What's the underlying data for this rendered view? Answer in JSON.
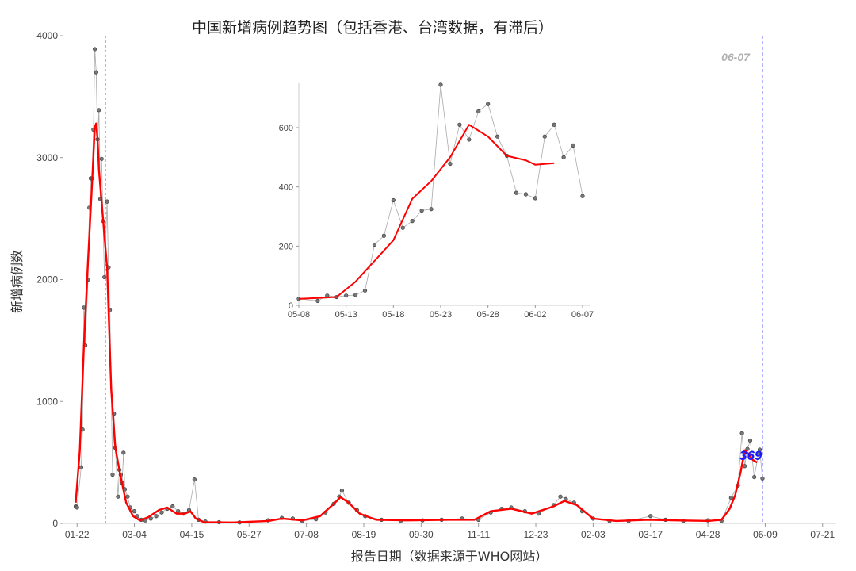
{
  "title": "中国新增病例趋势图（包括香港、台湾数据，有滞后）",
  "chart_data": [
    {
      "type": "line",
      "title": "中国新增病例趋势图（包括香港、台湾数据，有滞后）",
      "xlabel": "报告日期（数据来源于WHO网站）",
      "ylabel": "新增病例数",
      "ylim": [
        0,
        4000
      ],
      "xlim": [
        "2020-01-12",
        "2021-07-31"
      ],
      "y_ticks": [
        "0",
        "1000",
        "2000",
        "3000",
        "4000"
      ],
      "x_ticks": [
        "01-22",
        "03-04",
        "04-15",
        "05-27",
        "07-08",
        "08-19",
        "09-30",
        "11-11",
        "12-23",
        "02-03",
        "03-17",
        "04-28",
        "06-09",
        "07-21"
      ],
      "x_tick_dates": [
        "2020-01-22",
        "2020-03-04",
        "2020-04-15",
        "2020-05-27",
        "2020-07-08",
        "2020-08-19",
        "2020-09-30",
        "2020-11-11",
        "2020-12-23",
        "2021-02-03",
        "2021-03-17",
        "2021-04-28",
        "2021-06-09",
        "2021-07-21"
      ],
      "grid": false,
      "reference_lines": {
        "left_dashed": "2020-02-12",
        "right_dashed": "2021-06-07"
      },
      "annotation_date": "06-07",
      "annotation_last_value": "369",
      "series": [
        {
          "kind": "daily points",
          "color": "#555555",
          "points": [
            [
              "2020-01-21",
              140
            ],
            [
              "2020-01-22",
              131
            ],
            [
              "2020-01-25",
              460
            ],
            [
              "2020-01-26",
              770
            ],
            [
              "2020-01-27",
              1770
            ],
            [
              "2020-01-28",
              1460
            ],
            [
              "2020-01-30",
              2000
            ],
            [
              "2020-01-31",
              2590
            ],
            [
              "2020-02-01",
              2830
            ],
            [
              "2020-02-02",
              2830
            ],
            [
              "2020-02-03",
              3230
            ],
            [
              "2020-02-04",
              3890
            ],
            [
              "2020-02-05",
              3700
            ],
            [
              "2020-02-06",
              3150
            ],
            [
              "2020-02-07",
              3390
            ],
            [
              "2020-02-08",
              2660
            ],
            [
              "2020-02-09",
              2990
            ],
            [
              "2020-02-10",
              2480
            ],
            [
              "2020-02-11",
              2020
            ],
            [
              "2020-02-13",
              2640
            ],
            [
              "2020-02-14",
              2100
            ],
            [
              "2020-02-15",
              1750
            ],
            [
              "2020-02-17",
              400
            ],
            [
              "2020-02-18",
              900
            ],
            [
              "2020-02-19",
              620
            ],
            [
              "2020-02-21",
              220
            ],
            [
              "2020-02-22",
              440
            ],
            [
              "2020-02-23",
              400
            ],
            [
              "2020-02-24",
              330
            ],
            [
              "2020-02-25",
              580
            ],
            [
              "2020-02-26",
              280
            ],
            [
              "2020-02-28",
              220
            ],
            [
              "2020-03-01",
              130
            ],
            [
              "2020-03-04",
              100
            ],
            [
              "2020-03-06",
              60
            ],
            [
              "2020-03-09",
              30
            ],
            [
              "2020-03-12",
              25
            ],
            [
              "2020-03-16",
              40
            ],
            [
              "2020-03-20",
              60
            ],
            [
              "2020-03-24",
              90
            ],
            [
              "2020-03-28",
              120
            ],
            [
              "2020-04-01",
              140
            ],
            [
              "2020-04-05",
              100
            ],
            [
              "2020-04-09",
              80
            ],
            [
              "2020-04-13",
              110
            ],
            [
              "2020-04-17",
              360
            ],
            [
              "2020-04-20",
              30
            ],
            [
              "2020-04-25",
              15
            ],
            [
              "2020-05-05",
              10
            ],
            [
              "2020-05-20",
              8
            ],
            [
              "2020-06-10",
              25
            ],
            [
              "2020-06-20",
              45
            ],
            [
              "2020-06-28",
              40
            ],
            [
              "2020-07-05",
              20
            ],
            [
              "2020-07-15",
              35
            ],
            [
              "2020-07-22",
              90
            ],
            [
              "2020-07-28",
              160
            ],
            [
              "2020-08-01",
              220
            ],
            [
              "2020-08-03",
              270
            ],
            [
              "2020-08-08",
              170
            ],
            [
              "2020-08-14",
              110
            ],
            [
              "2020-08-20",
              60
            ],
            [
              "2020-09-01",
              30
            ],
            [
              "2020-09-15",
              20
            ],
            [
              "2020-10-01",
              25
            ],
            [
              "2020-10-15",
              30
            ],
            [
              "2020-10-30",
              40
            ],
            [
              "2020-11-11",
              30
            ],
            [
              "2020-11-20",
              90
            ],
            [
              "2020-11-28",
              120
            ],
            [
              "2020-12-05",
              130
            ],
            [
              "2020-12-15",
              100
            ],
            [
              "2020-12-25",
              80
            ],
            [
              "2021-01-05",
              150
            ],
            [
              "2021-01-10",
              220
            ],
            [
              "2021-01-14",
              200
            ],
            [
              "2021-01-20",
              170
            ],
            [
              "2021-01-26",
              100
            ],
            [
              "2021-02-03",
              40
            ],
            [
              "2021-02-15",
              20
            ],
            [
              "2021-03-01",
              20
            ],
            [
              "2021-03-17",
              60
            ],
            [
              "2021-03-28",
              30
            ],
            [
              "2021-04-10",
              20
            ],
            [
              "2021-04-28",
              25
            ],
            [
              "2021-05-08",
              20
            ],
            [
              "2021-05-15",
              210
            ],
            [
              "2021-05-20",
              310
            ],
            [
              "2021-05-23",
              740
            ],
            [
              "2021-05-25",
              470
            ],
            [
              "2021-05-27",
              610
            ],
            [
              "2021-05-29",
              680
            ],
            [
              "2021-06-01",
              380
            ],
            [
              "2021-06-04",
              570
            ],
            [
              "2021-06-05",
              605
            ],
            [
              "2021-06-07",
              369
            ]
          ]
        },
        {
          "kind": "smoothed trend",
          "color": "#ff0000",
          "points": [
            [
              "2020-01-21",
              170
            ],
            [
              "2020-01-24",
              600
            ],
            [
              "2020-01-27",
              1450
            ],
            [
              "2020-01-30",
              2150
            ],
            [
              "2020-02-02",
              2800
            ],
            [
              "2020-02-04",
              3250
            ],
            [
              "2020-02-05",
              3280
            ],
            [
              "2020-02-06",
              3150
            ],
            [
              "2020-02-07",
              2900
            ],
            [
              "2020-02-13",
              2100
            ],
            [
              "2020-02-16",
              1100
            ],
            [
              "2020-02-19",
              620
            ],
            [
              "2020-02-23",
              380
            ],
            [
              "2020-02-27",
              170
            ],
            [
              "2020-03-03",
              60
            ],
            [
              "2020-03-08",
              25
            ],
            [
              "2020-03-14",
              50
            ],
            [
              "2020-03-22",
              110
            ],
            [
              "2020-03-28",
              130
            ],
            [
              "2020-04-04",
              80
            ],
            [
              "2020-04-10",
              80
            ],
            [
              "2020-04-14",
              100
            ],
            [
              "2020-04-18",
              40
            ],
            [
              "2020-04-24",
              10
            ],
            [
              "2020-05-15",
              8
            ],
            [
              "2020-06-10",
              20
            ],
            [
              "2020-06-20",
              40
            ],
            [
              "2020-07-05",
              25
            ],
            [
              "2020-07-18",
              60
            ],
            [
              "2020-07-28",
              160
            ],
            [
              "2020-08-02",
              215
            ],
            [
              "2020-08-08",
              170
            ],
            [
              "2020-08-16",
              80
            ],
            [
              "2020-08-28",
              30
            ],
            [
              "2020-09-20",
              25
            ],
            [
              "2020-10-20",
              30
            ],
            [
              "2020-11-08",
              30
            ],
            [
              "2020-11-20",
              100
            ],
            [
              "2020-12-05",
              120
            ],
            [
              "2020-12-20",
              80
            ],
            [
              "2021-01-05",
              140
            ],
            [
              "2021-01-13",
              185
            ],
            [
              "2021-01-22",
              150
            ],
            [
              "2021-02-03",
              40
            ],
            [
              "2021-02-20",
              20
            ],
            [
              "2021-03-15",
              30
            ],
            [
              "2021-04-05",
              25
            ],
            [
              "2021-04-28",
              20
            ],
            [
              "2021-05-08",
              30
            ],
            [
              "2021-05-14",
              120
            ],
            [
              "2021-05-18",
              230
            ],
            [
              "2021-05-22",
              420
            ],
            [
              "2021-05-25",
              600
            ],
            [
              "2021-05-27",
              580
            ],
            [
              "2021-05-31",
              520
            ],
            [
              "2021-06-03",
              500
            ]
          ]
        }
      ]
    },
    {
      "type": "line",
      "role": "inset",
      "xlim": [
        "2021-05-08",
        "2021-06-07"
      ],
      "ylim": [
        0,
        750
      ],
      "y_ticks": [
        "0",
        "200",
        "400",
        "600"
      ],
      "x_ticks": [
        "05-08",
        "05-13",
        "05-18",
        "05-23",
        "05-28",
        "06-02",
        "06-07"
      ],
      "x_tick_dates": [
        "2021-05-08",
        "2021-05-13",
        "2021-05-18",
        "2021-05-23",
        "2021-05-28",
        "2021-06-02",
        "2021-06-07"
      ],
      "grid": false,
      "series": [
        {
          "kind": "daily points",
          "color": "#555555",
          "points": [
            [
              "2021-05-08",
              22
            ],
            [
              "2021-05-10",
              15
            ],
            [
              "2021-05-11",
              33
            ],
            [
              "2021-05-12",
              28
            ],
            [
              "2021-05-13",
              33
            ],
            [
              "2021-05-14",
              35
            ],
            [
              "2021-05-15",
              50
            ],
            [
              "2021-05-16",
              205
            ],
            [
              "2021-05-17",
              235
            ],
            [
              "2021-05-18",
              355
            ],
            [
              "2021-05-19",
              262
            ],
            [
              "2021-05-20",
              285
            ],
            [
              "2021-05-21",
              320
            ],
            [
              "2021-05-22",
              325
            ],
            [
              "2021-05-23",
              745
            ],
            [
              "2021-05-24",
              478
            ],
            [
              "2021-05-25",
              610
            ],
            [
              "2021-05-26",
              560
            ],
            [
              "2021-05-27",
              655
            ],
            [
              "2021-05-28",
              680
            ],
            [
              "2021-05-29",
              570
            ],
            [
              "2021-05-30",
              505
            ],
            [
              "2021-05-31",
              380
            ],
            [
              "2021-06-01",
              375
            ],
            [
              "2021-06-02",
              362
            ],
            [
              "2021-06-03",
              570
            ],
            [
              "2021-06-04",
              610
            ],
            [
              "2021-06-05",
              500
            ],
            [
              "2021-06-06",
              540
            ],
            [
              "2021-06-07",
              369
            ]
          ]
        },
        {
          "kind": "smoothed trend",
          "color": "#ff0000",
          "points": [
            [
              "2021-05-08",
              22
            ],
            [
              "2021-05-10",
              25
            ],
            [
              "2021-05-12",
              28
            ],
            [
              "2021-05-14",
              80
            ],
            [
              "2021-05-16",
              150
            ],
            [
              "2021-05-18",
              220
            ],
            [
              "2021-05-20",
              360
            ],
            [
              "2021-05-22",
              420
            ],
            [
              "2021-05-24",
              500
            ],
            [
              "2021-05-26",
              610
            ],
            [
              "2021-05-28",
              570
            ],
            [
              "2021-05-30",
              505
            ],
            [
              "2021-06-01",
              490
            ],
            [
              "2021-06-02",
              475
            ],
            [
              "2021-06-04",
              480
            ]
          ]
        }
      ]
    }
  ]
}
